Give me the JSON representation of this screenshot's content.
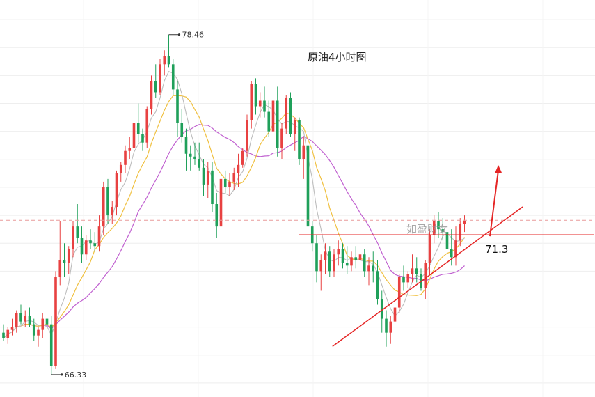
{
  "chart_data": {
    "type": "candlestick",
    "title": "原油4小时图",
    "watermark": "如盈财女",
    "y_range": [
      65.5,
      79.5
    ],
    "grid": true,
    "high_label": "78.46",
    "low_label": "66.33",
    "level_label": "71.3",
    "levels": {
      "resistance": 71.3,
      "current_price_dashed": 71.82
    },
    "trendline": {
      "from": {
        "bar": 75,
        "price": 67.31
      },
      "to": {
        "bar": 104,
        "price": 72.3
      }
    },
    "projection_arrow": {
      "from_price": 71.3,
      "to_price": 73.8
    },
    "colors": {
      "up": "#e84141",
      "down": "#1fa05a",
      "ma_fast": "#bdbdbd",
      "ma_mid": "#f0c040",
      "ma_slow": "#c060d0",
      "annotation": "#e52525",
      "grid": "#eeeeee",
      "dashed_level": "#e99a9a"
    },
    "candles": [
      [
        67.8,
        68.1,
        67.5,
        67.6
      ],
      [
        67.6,
        68.0,
        67.4,
        67.9
      ],
      [
        67.9,
        68.3,
        67.7,
        68.0
      ],
      [
        68.0,
        68.6,
        67.8,
        68.5
      ],
      [
        68.5,
        68.8,
        68.1,
        68.2
      ],
      [
        68.2,
        68.6,
        68.0,
        68.4
      ],
      [
        68.4,
        68.7,
        68.0,
        68.1
      ],
      [
        68.1,
        68.3,
        67.5,
        67.7
      ],
      [
        67.7,
        68.0,
        67.3,
        67.9
      ],
      [
        67.9,
        68.5,
        67.6,
        68.3
      ],
      [
        68.3,
        68.9,
        68.0,
        68.1
      ],
      [
        68.1,
        68.4,
        66.3,
        66.6
      ],
      [
        66.6,
        70.0,
        66.5,
        69.8
      ],
      [
        69.8,
        71.8,
        69.5,
        70.4
      ],
      [
        70.4,
        71.0,
        69.8,
        70.3
      ],
      [
        70.3,
        70.9,
        69.9,
        70.8
      ],
      [
        70.8,
        71.8,
        70.5,
        71.6
      ],
      [
        71.6,
        72.4,
        71.0,
        71.2
      ],
      [
        71.2,
        71.6,
        70.3,
        70.6
      ],
      [
        70.6,
        71.3,
        70.4,
        71.1
      ],
      [
        71.1,
        71.5,
        70.8,
        71.0
      ],
      [
        71.0,
        71.4,
        70.7,
        70.9
      ],
      [
        70.9,
        72.0,
        70.7,
        71.6
      ],
      [
        71.6,
        73.2,
        71.3,
        73.0
      ],
      [
        73.0,
        73.3,
        71.7,
        72.0
      ],
      [
        72.0,
        72.5,
        71.7,
        72.3
      ],
      [
        72.3,
        73.6,
        72.0,
        73.5
      ],
      [
        73.5,
        73.9,
        73.2,
        73.8
      ],
      [
        73.8,
        74.5,
        73.5,
        74.3
      ],
      [
        74.3,
        74.8,
        74.0,
        74.4
      ],
      [
        74.4,
        75.5,
        74.2,
        75.3
      ],
      [
        75.3,
        76.0,
        74.6,
        74.9
      ],
      [
        74.9,
        75.1,
        74.3,
        74.6
      ],
      [
        74.6,
        75.9,
        74.4,
        75.8
      ],
      [
        75.8,
        77.0,
        75.6,
        76.8
      ],
      [
        76.8,
        77.4,
        76.2,
        76.4
      ],
      [
        76.4,
        77.6,
        76.3,
        77.4
      ],
      [
        77.4,
        77.9,
        77.0,
        77.7
      ],
      [
        77.7,
        78.46,
        77.3,
        77.4
      ],
      [
        77.4,
        77.6,
        76.3,
        76.5
      ],
      [
        76.5,
        76.8,
        74.8,
        75.3
      ],
      [
        75.3,
        75.8,
        74.6,
        74.8
      ],
      [
        74.8,
        75.1,
        73.6,
        74.2
      ],
      [
        74.2,
        74.5,
        73.6,
        74.1
      ],
      [
        74.1,
        74.6,
        73.8,
        74.0
      ],
      [
        74.0,
        74.6,
        73.6,
        73.7
      ],
      [
        73.7,
        74.0,
        72.7,
        73.1
      ],
      [
        73.1,
        73.9,
        72.6,
        73.6
      ],
      [
        73.6,
        73.9,
        72.1,
        72.4
      ],
      [
        72.4,
        72.8,
        71.2,
        71.6
      ],
      [
        71.6,
        73.8,
        71.3,
        73.3
      ],
      [
        73.3,
        73.6,
        72.8,
        73.0
      ],
      [
        73.0,
        73.5,
        72.7,
        73.2
      ],
      [
        73.2,
        73.7,
        72.9,
        73.5
      ],
      [
        73.5,
        74.2,
        73.0,
        73.8
      ],
      [
        73.8,
        74.4,
        73.7,
        74.3
      ],
      [
        74.3,
        75.6,
        74.1,
        75.4
      ],
      [
        75.4,
        76.8,
        75.1,
        76.7
      ],
      [
        76.7,
        76.9,
        75.6,
        75.9
      ],
      [
        75.9,
        76.4,
        75.5,
        76.1
      ],
      [
        76.1,
        76.6,
        75.5,
        75.7
      ],
      [
        75.7,
        76.1,
        74.8,
        75.0
      ],
      [
        75.0,
        76.3,
        74.9,
        76.1
      ],
      [
        76.1,
        76.6,
        74.1,
        74.4
      ],
      [
        74.4,
        75.3,
        74.0,
        75.1
      ],
      [
        75.1,
        76.3,
        74.9,
        76.2
      ],
      [
        76.2,
        76.4,
        74.8,
        74.9
      ],
      [
        74.9,
        75.5,
        74.3,
        75.4
      ],
      [
        75.4,
        75.5,
        73.8,
        74.0
      ],
      [
        74.0,
        74.8,
        73.3,
        74.5
      ],
      [
        74.5,
        74.6,
        71.3,
        71.6
      ],
      [
        71.6,
        71.8,
        70.7,
        71.0
      ],
      [
        71.0,
        71.3,
        69.6,
        70.0
      ],
      [
        70.0,
        70.6,
        69.3,
        70.4
      ],
      [
        70.4,
        71.0,
        69.9,
        70.7
      ],
      [
        70.7,
        70.9,
        69.8,
        70.0
      ],
      [
        70.0,
        70.8,
        69.8,
        70.6
      ],
      [
        70.6,
        71.1,
        70.2,
        70.8
      ],
      [
        70.8,
        71.0,
        70.1,
        70.3
      ],
      [
        70.3,
        70.9,
        69.9,
        70.2
      ],
      [
        70.2,
        70.7,
        70.0,
        70.5
      ],
      [
        70.5,
        70.9,
        70.1,
        70.4
      ],
      [
        70.4,
        71.1,
        70.3,
        70.6
      ],
      [
        70.6,
        70.8,
        69.8,
        70.0
      ],
      [
        70.0,
        70.5,
        69.5,
        70.2
      ],
      [
        70.2,
        70.7,
        69.6,
        70.0
      ],
      [
        70.0,
        70.4,
        68.8,
        69.0
      ],
      [
        69.0,
        69.3,
        67.8,
        68.3
      ],
      [
        68.3,
        68.6,
        67.3,
        67.8
      ],
      [
        67.8,
        68.4,
        67.4,
        68.2
      ],
      [
        68.2,
        69.2,
        67.9,
        68.7
      ],
      [
        68.7,
        69.9,
        68.5,
        69.8
      ],
      [
        69.8,
        70.2,
        69.3,
        69.6
      ],
      [
        69.6,
        70.0,
        69.4,
        69.9
      ],
      [
        69.9,
        70.6,
        69.6,
        70.1
      ],
      [
        70.1,
        70.5,
        69.6,
        69.9
      ],
      [
        69.9,
        70.1,
        69.3,
        69.4
      ],
      [
        69.4,
        70.4,
        69.0,
        70.3
      ],
      [
        70.3,
        71.5,
        69.9,
        71.3
      ],
      [
        71.3,
        72.0,
        71.0,
        71.8
      ],
      [
        71.8,
        72.1,
        71.2,
        71.5
      ],
      [
        71.5,
        71.9,
        71.1,
        71.4
      ],
      [
        71.4,
        71.8,
        70.5,
        70.8
      ],
      [
        70.8,
        71.5,
        70.2,
        70.5
      ],
      [
        70.5,
        71.6,
        70.2,
        71.1
      ],
      [
        71.1,
        71.9,
        70.9,
        71.7
      ],
      [
        71.7,
        72.0,
        71.4,
        71.8
      ]
    ]
  }
}
